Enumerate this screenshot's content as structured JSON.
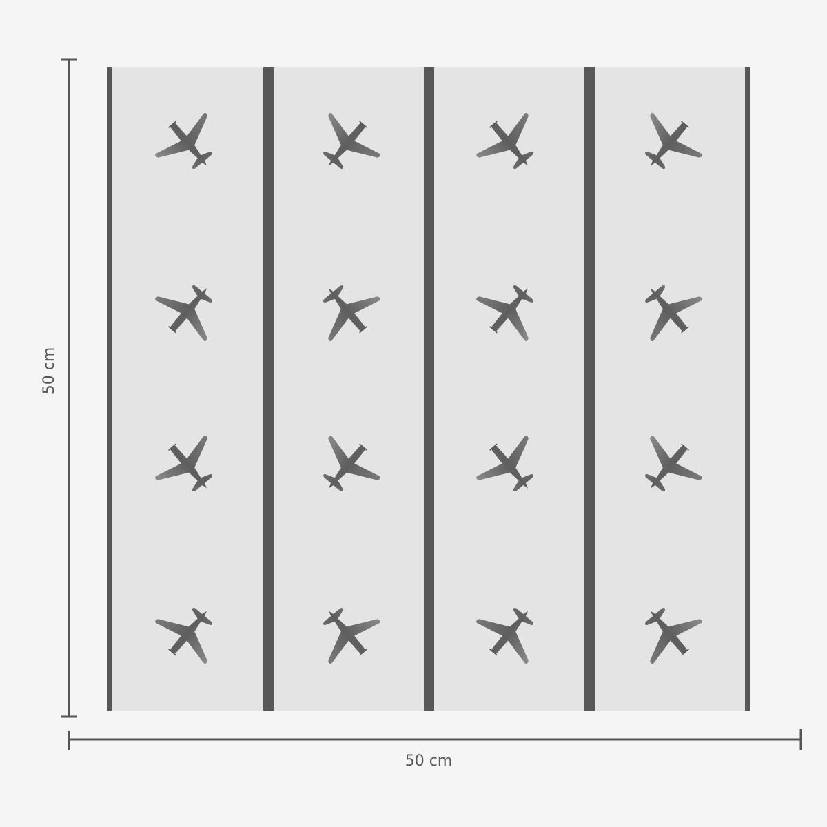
{
  "dimensions": {
    "height_label": "50 cm",
    "width_label": "50 cm"
  },
  "product": {
    "panels": 4,
    "pattern_icon": "airplane-icon",
    "rows": 4
  },
  "colors": {
    "background": "#f5f5f5",
    "panel": "#e4e4e4",
    "divider": "#575757",
    "plane": "#6e6e6e",
    "dimension_line": "#555555"
  }
}
